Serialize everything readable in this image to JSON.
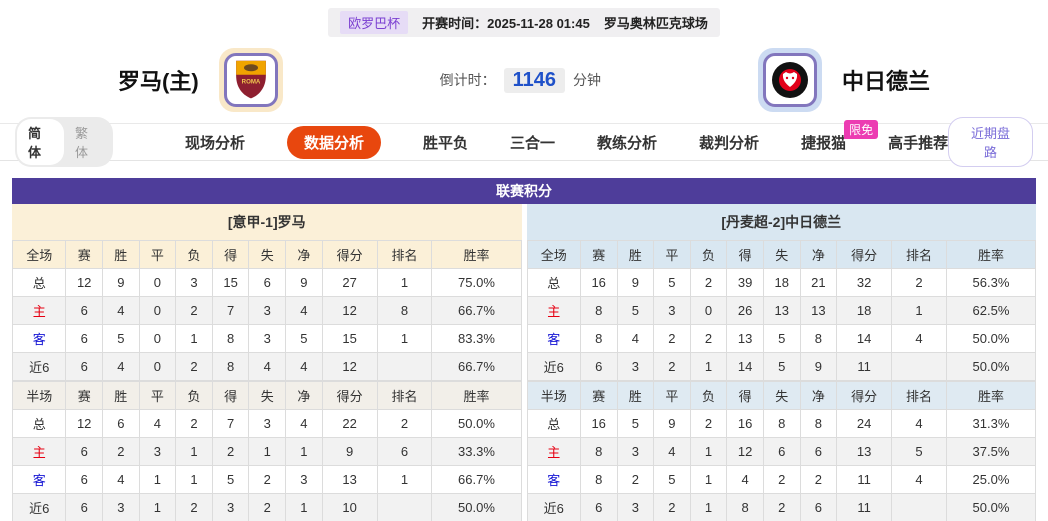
{
  "top_bar": {
    "league": "欧罗巴杯",
    "kickoff": "开赛时间：2025-11-28 01:45",
    "venue": "罗马奥林匹克球场"
  },
  "match": {
    "home_name": "罗马(主)",
    "away_name": "中日德兰",
    "countdown_label": "倒计时：",
    "countdown_value": "1146",
    "countdown_unit": "分钟"
  },
  "nav": {
    "lang_simplified": "简体",
    "lang_traditional": "繁体",
    "tabs": [
      {
        "label": "现场分析"
      },
      {
        "label": "数据分析",
        "active": true
      },
      {
        "label": "胜平负"
      },
      {
        "label": "三合一"
      },
      {
        "label": "教练分析"
      },
      {
        "label": "裁判分析"
      },
      {
        "label": "捷报猫",
        "badge": "限免"
      },
      {
        "label": "高手推荐"
      }
    ],
    "right_button": "近期盘路"
  },
  "section": {
    "title": "联赛积分",
    "left": {
      "team_header": "[意甲-1]罗马",
      "full": {
        "header": [
          "全场",
          "赛",
          "胜",
          "平",
          "负",
          "得",
          "失",
          "净",
          "得分",
          "排名",
          "胜率"
        ],
        "rows": [
          {
            "label": "总",
            "type": "",
            "values": [
              "12",
              "9",
              "0",
              "3",
              "15",
              "6",
              "9",
              "27",
              "1",
              "75.0%"
            ]
          },
          {
            "label": "主",
            "type": "home",
            "values": [
              "6",
              "4",
              "0",
              "2",
              "7",
              "3",
              "4",
              "12",
              "8",
              "66.7%"
            ]
          },
          {
            "label": "客",
            "type": "away",
            "values": [
              "6",
              "5",
              "0",
              "1",
              "8",
              "3",
              "5",
              "15",
              "1",
              "83.3%"
            ]
          },
          {
            "label": "近6",
            "type": "",
            "values": [
              "6",
              "4",
              "0",
              "2",
              "8",
              "4",
              "4",
              "12",
              "",
              "66.7%"
            ]
          }
        ]
      },
      "half": {
        "header": [
          "半场",
          "赛",
          "胜",
          "平",
          "负",
          "得",
          "失",
          "净",
          "得分",
          "排名",
          "胜率"
        ],
        "rows": [
          {
            "label": "总",
            "type": "",
            "values": [
              "12",
              "6",
              "4",
              "2",
              "7",
              "3",
              "4",
              "22",
              "2",
              "50.0%"
            ]
          },
          {
            "label": "主",
            "type": "home",
            "values": [
              "6",
              "2",
              "3",
              "1",
              "2",
              "1",
              "1",
              "9",
              "6",
              "33.3%"
            ]
          },
          {
            "label": "客",
            "type": "away",
            "values": [
              "6",
              "4",
              "1",
              "1",
              "5",
              "2",
              "3",
              "13",
              "1",
              "66.7%"
            ]
          },
          {
            "label": "近6",
            "type": "",
            "values": [
              "6",
              "3",
              "1",
              "2",
              "3",
              "2",
              "1",
              "10",
              "",
              "50.0%"
            ]
          }
        ]
      }
    },
    "right": {
      "team_header": "[丹麦超-2]中日德兰",
      "full": {
        "header": [
          "全场",
          "赛",
          "胜",
          "平",
          "负",
          "得",
          "失",
          "净",
          "得分",
          "排名",
          "胜率"
        ],
        "rows": [
          {
            "label": "总",
            "type": "",
            "values": [
              "16",
              "9",
              "5",
              "2",
              "39",
              "18",
              "21",
              "32",
              "2",
              "56.3%"
            ]
          },
          {
            "label": "主",
            "type": "home",
            "values": [
              "8",
              "5",
              "3",
              "0",
              "26",
              "13",
              "13",
              "18",
              "1",
              "62.5%"
            ]
          },
          {
            "label": "客",
            "type": "away",
            "values": [
              "8",
              "4",
              "2",
              "2",
              "13",
              "5",
              "8",
              "14",
              "4",
              "50.0%"
            ]
          },
          {
            "label": "近6",
            "type": "",
            "values": [
              "6",
              "3",
              "2",
              "1",
              "14",
              "5",
              "9",
              "11",
              "",
              "50.0%"
            ]
          }
        ]
      },
      "half": {
        "header": [
          "半场",
          "赛",
          "胜",
          "平",
          "负",
          "得",
          "失",
          "净",
          "得分",
          "排名",
          "胜率"
        ],
        "rows": [
          {
            "label": "总",
            "type": "",
            "values": [
              "16",
              "5",
              "9",
              "2",
              "16",
              "8",
              "8",
              "24",
              "4",
              "31.3%"
            ]
          },
          {
            "label": "主",
            "type": "home",
            "values": [
              "8",
              "3",
              "4",
              "1",
              "12",
              "6",
              "6",
              "13",
              "5",
              "37.5%"
            ]
          },
          {
            "label": "客",
            "type": "away",
            "values": [
              "8",
              "2",
              "5",
              "1",
              "4",
              "2",
              "2",
              "11",
              "4",
              "25.0%"
            ]
          },
          {
            "label": "近6",
            "type": "",
            "values": [
              "6",
              "3",
              "2",
              "1",
              "8",
              "2",
              "6",
              "11",
              "",
              "50.0%"
            ]
          }
        ]
      }
    }
  },
  "colors": {
    "section_purple": "#4e3d9a",
    "active_tab_orange": "#e8470e",
    "badge_pink": "#ec3cb2",
    "countdown_blue": "#1f51c9",
    "home_row_red": "#e60012",
    "away_row_blue": "#1414d4",
    "cream_theme": "#fbf0d8",
    "blue_theme": "#d9e7f1"
  }
}
